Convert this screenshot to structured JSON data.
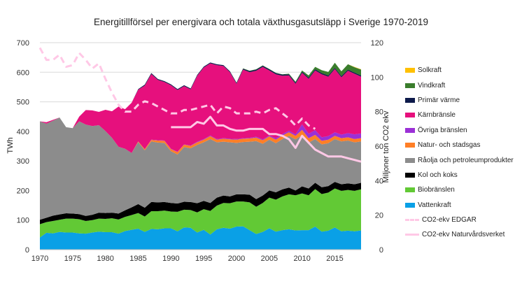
{
  "chart_data": {
    "type": "area",
    "title": "Energitillförsel per energivara och totala växthusgasutsläpp i Sverige 1970-2019",
    "ylabel_left": "TWh",
    "ylabel_right": "Miljoner ton CO2 ekv",
    "ylim_left": [
      0,
      700
    ],
    "ylim_right": [
      0,
      120
    ],
    "xlim": [
      1970,
      2019
    ],
    "x_ticks": [
      "1970",
      "1975",
      "1980",
      "1985",
      "1990",
      "1995",
      "2000",
      "2005",
      "2010",
      "2015"
    ],
    "y_ticks_left": [
      "0",
      "100",
      "200",
      "300",
      "400",
      "500",
      "600",
      "700"
    ],
    "y_ticks_right": [
      "0",
      "20",
      "40",
      "60",
      "80",
      "100",
      "120"
    ],
    "years": [
      1970,
      1971,
      1972,
      1973,
      1974,
      1975,
      1976,
      1977,
      1978,
      1979,
      1980,
      1981,
      1982,
      1983,
      1984,
      1985,
      1986,
      1987,
      1988,
      1989,
      1990,
      1991,
      1992,
      1993,
      1994,
      1995,
      1996,
      1997,
      1998,
      1999,
      2000,
      2001,
      2002,
      2003,
      2004,
      2005,
      2006,
      2007,
      2008,
      2009,
      2010,
      2011,
      2012,
      2013,
      2014,
      2015,
      2016,
      2017,
      2018,
      2019
    ],
    "series": [
      {
        "name": "Vattenkraft",
        "color": "#0aa0e6",
        "values": [
          41,
          57,
          55,
          60,
          58,
          58,
          55,
          54,
          58,
          61,
          59,
          59,
          54,
          63,
          67,
          71,
          60,
          70,
          69,
          72,
          72,
          62,
          75,
          74,
          58,
          67,
          51,
          69,
          74,
          71,
          78,
          79,
          66,
          53,
          60,
          72,
          61,
          66,
          69,
          65,
          66,
          66,
          78,
          61,
          64,
          75,
          62,
          64,
          62,
          65
        ]
      },
      {
        "name": "Biobränslen",
        "color": "#62c935",
        "values": [
          45,
          36,
          42,
          41,
          47,
          47,
          48,
          43,
          42,
          44,
          45,
          47,
          48,
          48,
          50,
          53,
          52,
          60,
          61,
          60,
          57,
          66,
          60,
          60,
          68,
          70,
          80,
          80,
          84,
          86,
          85,
          84,
          94,
          92,
          98,
          104,
          108,
          114,
          118,
          119,
          124,
          118,
          127,
          127,
          129,
          132,
          137,
          138,
          137,
          139
        ]
      },
      {
        "name": "Kol och koks",
        "color": "#000000",
        "values": [
          15,
          15,
          18,
          18,
          18,
          17,
          17,
          17,
          18,
          20,
          20,
          19,
          20,
          22,
          26,
          30,
          30,
          31,
          30,
          29,
          29,
          28,
          27,
          27,
          31,
          28,
          27,
          27,
          25,
          23,
          24,
          24,
          26,
          26,
          25,
          24,
          25,
          24,
          23,
          16,
          24,
          23,
          21,
          23,
          22,
          22,
          22,
          22,
          22,
          22
        ]
      },
      {
        "name": "Råolja och petroleumprodukter",
        "color": "#8c8c8c",
        "values": [
          333,
          318,
          321,
          328,
          291,
          289,
          314,
          309,
          300,
          296,
          277,
          253,
          226,
          208,
          184,
          210,
          194,
          205,
          202,
          200,
          175,
          166,
          185,
          182,
          197,
          198,
          216,
          187,
          182,
          183,
          174,
          177,
          179,
          196,
          175,
          172,
          166,
          170,
          175,
          173,
          173,
          155,
          148,
          145,
          145,
          145,
          145,
          145,
          142,
          140
        ]
      },
      {
        "name": "Natur- och stadsgas",
        "color": "#ff7f27",
        "values": [
          0,
          0,
          0,
          0,
          0,
          0,
          0,
          0,
          0,
          0,
          0,
          0,
          0,
          0,
          0,
          2,
          4,
          5,
          7,
          7,
          7,
          8,
          8,
          8,
          9,
          9,
          10,
          9,
          10,
          10,
          11,
          11,
          11,
          12,
          12,
          11,
          12,
          12,
          12,
          12,
          18,
          15,
          14,
          12,
          12,
          11,
          11,
          11,
          11,
          11
        ]
      },
      {
        "name": "Övriga bränslen",
        "color": "#9b30d6",
        "values": [
          0,
          0,
          0,
          0,
          0,
          0,
          0,
          0,
          0,
          0,
          0,
          0,
          0,
          0,
          0,
          0,
          0,
          1,
          1,
          1,
          1,
          1,
          1,
          1,
          2,
          2,
          2,
          2,
          2,
          2,
          2,
          2,
          2,
          3,
          3,
          3,
          5,
          5,
          5,
          5,
          19,
          15,
          16,
          12,
          12,
          12,
          12,
          14,
          16,
          16
        ]
      },
      {
        "name": "Kärnbränsle",
        "color": "#e6107d",
        "values": [
          0,
          5,
          3,
          0,
          0,
          0,
          16,
          49,
          53,
          45,
          72,
          90,
          136,
          134,
          170,
          175,
          215,
          222,
          204,
          198,
          215,
          209,
          197,
          190,
          223,
          242,
          244,
          250,
          244,
          225,
          187,
          232,
          222,
          223,
          245,
          220,
          216,
          197,
          187,
          171,
          174,
          186,
          202,
          213,
          201,
          214,
          194,
          211,
          205,
          192
        ]
      },
      {
        "name": "Primär värme",
        "color": "#0d1a4a",
        "values": [
          0,
          0,
          0,
          0,
          0,
          0,
          0,
          0,
          0,
          0,
          0,
          0,
          0,
          0,
          0,
          2,
          3,
          3,
          3,
          3,
          3,
          3,
          3,
          3,
          3,
          3,
          3,
          3,
          3,
          3,
          3,
          3,
          4,
          4,
          4,
          4,
          4,
          4,
          4,
          4,
          4,
          4,
          4,
          4,
          4,
          4,
          4,
          4,
          4,
          4
        ]
      },
      {
        "name": "Vindkraft",
        "color": "#3a7d2c",
        "values": [
          0,
          0,
          0,
          0,
          0,
          0,
          0,
          0,
          0,
          0,
          0,
          0,
          0,
          0,
          0,
          0,
          0,
          0,
          0,
          0,
          0,
          0,
          0,
          0,
          0,
          0,
          0,
          0,
          0,
          0,
          1,
          1,
          1,
          1,
          1,
          1,
          1,
          1,
          2,
          3,
          4,
          7,
          8,
          10,
          12,
          17,
          16,
          18,
          18,
          20
        ]
      },
      {
        "name": "Solkraft",
        "color": "#ffc000",
        "values": [
          0,
          0,
          0,
          0,
          0,
          0,
          0,
          0,
          0,
          0,
          0,
          0,
          0,
          0,
          0,
          0,
          0,
          0,
          0,
          0,
          0,
          0,
          0,
          0,
          0,
          0,
          0,
          0,
          0,
          0,
          0,
          0,
          0,
          0,
          0,
          0,
          0,
          0,
          0,
          0,
          0,
          0,
          0,
          0,
          0,
          0,
          0,
          0,
          1,
          1
        ]
      }
    ],
    "lines": [
      {
        "name": "CO2-ekv EDGAR",
        "axis": "right",
        "color": "#ffc8e6",
        "dashed": true,
        "x": [
          1970,
          1971,
          1972,
          1973,
          1974,
          1975,
          1976,
          1977,
          1978,
          1979,
          1980,
          1981,
          1982,
          1983,
          1984,
          1985,
          1986,
          1987,
          1988,
          1989,
          1990,
          1991,
          1992,
          1993,
          1994,
          1995,
          1996,
          1997,
          1998,
          1999,
          2000,
          2001,
          2002,
          2003,
          2004,
          2005,
          2006,
          2007,
          2008,
          2009,
          2010,
          2011,
          2012
        ],
        "values": [
          117,
          110,
          110,
          113,
          106,
          107,
          114,
          110,
          105,
          108,
          99,
          91,
          84,
          80,
          80,
          84,
          86,
          85,
          83,
          81,
          79,
          79,
          81,
          81,
          82,
          83,
          84,
          79,
          83,
          82,
          79,
          79,
          79,
          80,
          79,
          81,
          82,
          79,
          76,
          72,
          76,
          72,
          70
        ]
      },
      {
        "name": "CO2-ekv Naturvårdsverket",
        "axis": "right",
        "color": "#ffc8e6",
        "dashed": false,
        "x": [
          1990,
          1991,
          1992,
          1993,
          1994,
          1995,
          1996,
          1997,
          1998,
          1999,
          2000,
          2001,
          2002,
          2003,
          2004,
          2005,
          2006,
          2007,
          2008,
          2009,
          2010,
          2011,
          2012,
          2013,
          2014,
          2015,
          2016,
          2017,
          2018,
          2019
        ],
        "values": [
          71,
          71,
          71,
          71,
          74,
          73,
          77,
          72,
          72,
          70,
          69,
          69,
          70,
          70,
          70,
          67,
          67,
          66,
          64,
          59,
          66,
          62,
          58,
          56,
          54,
          54,
          54,
          53,
          52,
          51
        ]
      }
    ],
    "legend": [
      "Solkraft",
      "Vindkraft",
      "Primär värme",
      "Kärnbränsle",
      "Övriga bränslen",
      "Natur- och stadsgas",
      "Råolja och petroleumprodukter",
      "Kol och koks",
      "Biobränslen",
      "Vattenkraft",
      "CO2-ekv EDGAR",
      "CO2-ekv Naturvårdsverket"
    ],
    "legend_position": "right"
  }
}
